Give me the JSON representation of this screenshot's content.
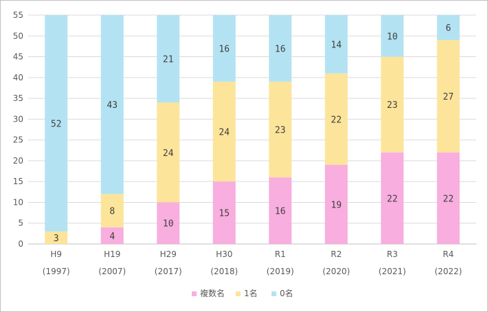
{
  "chart_data": {
    "type": "bar",
    "stacked": true,
    "categories": [
      [
        "H9",
        "(1997)"
      ],
      [
        "H19",
        "(2007)"
      ],
      [
        "H29",
        "(2017)"
      ],
      [
        "H30",
        "(2018)"
      ],
      [
        "R1",
        "(2019)"
      ],
      [
        "R2",
        "(2020)"
      ],
      [
        "R3",
        "(2021)"
      ],
      [
        "R4",
        "(2022)"
      ]
    ],
    "series": [
      {
        "name": "複数名",
        "color": "#f8aedf",
        "values": [
          0,
          4,
          10,
          15,
          16,
          19,
          22,
          22
        ]
      },
      {
        "name": "1名",
        "color": "#fde49b",
        "values": [
          3,
          8,
          24,
          24,
          23,
          22,
          23,
          27
        ]
      },
      {
        "name": "0名",
        "color": "#b3e3f2",
        "values": [
          52,
          43,
          21,
          16,
          16,
          14,
          10,
          6
        ]
      }
    ],
    "ylim": [
      0,
      55
    ],
    "yticks": [
      0,
      5,
      10,
      15,
      20,
      25,
      30,
      35,
      40,
      45,
      50,
      55
    ],
    "grid": true,
    "legend": "bottom"
  }
}
